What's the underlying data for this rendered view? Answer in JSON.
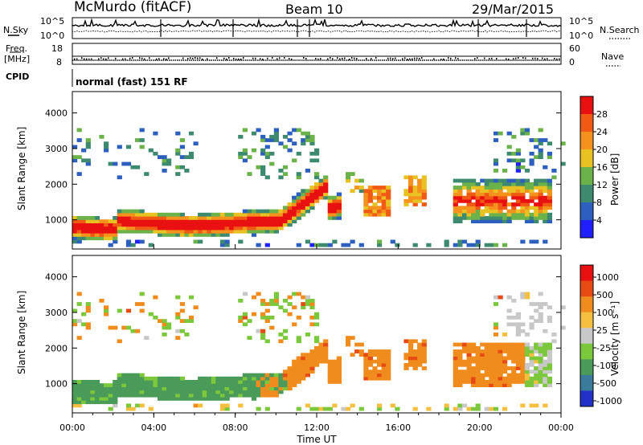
{
  "header": {
    "station": "McMurdo (fitACF)",
    "beam": "Beam 10",
    "date": "29/Mar/2015"
  },
  "aux_panels": {
    "nsky_label": "N.Sky",
    "nsky_ticks": [
      "10^5",
      "10^0"
    ],
    "nsearch_label": "N.Search",
    "nsearch_ticks": [
      "10^5",
      "10^0"
    ],
    "freq_label_line1": "Freq.",
    "freq_label_line2": "[MHz]",
    "freq_ticks": [
      "18",
      "8"
    ],
    "nave_label": "Nave",
    "nave_ticks": [
      "60",
      "0"
    ],
    "cpid_label": "CPID",
    "cpid_text": "normal (fast) 151 RF"
  },
  "chart_data": [
    {
      "type": "heatmap",
      "name": "power",
      "ylabel": "Slant Range [km]",
      "yticks": [
        1000,
        2000,
        3000,
        4000
      ],
      "ylim": [
        180,
        4600
      ],
      "xlim": [
        0,
        24
      ],
      "colorbar": {
        "label": "Power [dB]",
        "ticks": [
          "4",
          "8",
          "12",
          "16",
          "20",
          "24",
          "28"
        ],
        "colors": [
          "#1f1fff",
          "#2c5fbe",
          "#3e8a6e",
          "#6cb24a",
          "#e8c222",
          "#f5921e",
          "#f05a14",
          "#e81010"
        ]
      }
    },
    {
      "type": "heatmap",
      "name": "velocity",
      "ylabel": "Slant Range [km]",
      "yticks": [
        1000,
        2000,
        3000,
        4000
      ],
      "ylim": [
        180,
        4600
      ],
      "xlim": [
        0,
        24
      ],
      "xlabel": "Time UT",
      "xticks": [
        "00:00",
        "04:00",
        "08:00",
        "12:00",
        "16:00",
        "20:00",
        "00:00"
      ],
      "colorbar": {
        "label": "Velocity [m s⁻¹]",
        "ticks": [
          "1000",
          "500",
          "100",
          "25",
          "-25",
          "-100",
          "-500",
          "-1000"
        ],
        "colors": [
          "#2232c8",
          "#3a7a9a",
          "#4a9a5a",
          "#7cc83c",
          "#c8c8c8",
          "#f5c040",
          "#f08c1e",
          "#e84a14",
          "#e81010"
        ]
      }
    }
  ]
}
